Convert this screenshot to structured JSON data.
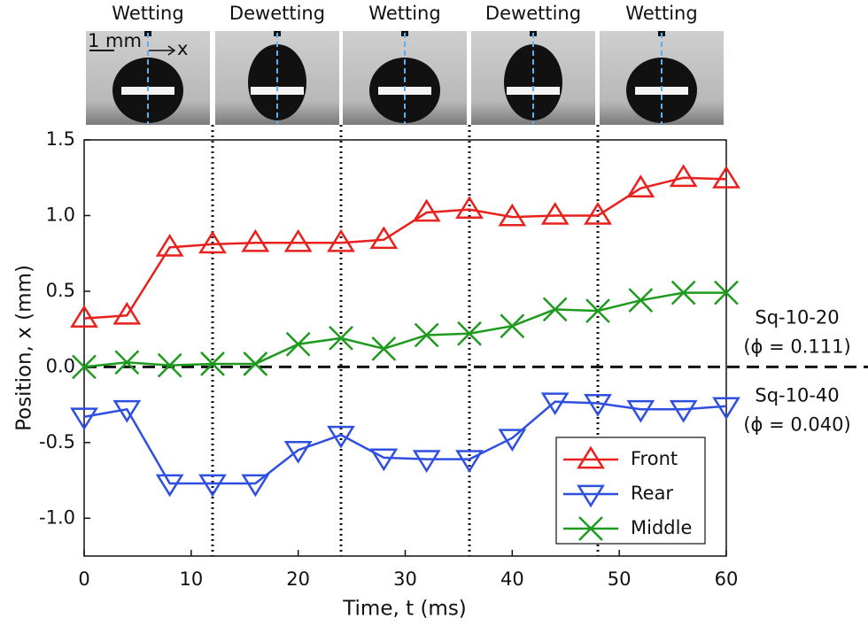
{
  "chart_data": {
    "type": "line",
    "panel_labels": [
      "Wetting",
      "Dewetting",
      "Wetting",
      "Dewetting",
      "Wetting"
    ],
    "scale_label": "1 mm",
    "photo_axis_label": "x",
    "x_label": "Time, t (ms)",
    "y_label": "Position, x (mm)",
    "x": [
      0,
      4,
      8,
      12,
      16,
      20,
      24,
      28,
      32,
      36,
      40,
      44,
      48,
      52,
      56,
      60
    ],
    "series": [
      {
        "name": "Front",
        "color": "#e8201e",
        "marker": "triangle-up",
        "values": [
          0.32,
          0.34,
          0.79,
          0.81,
          0.82,
          0.82,
          0.82,
          0.84,
          1.02,
          1.04,
          0.99,
          1.0,
          1.0,
          1.18,
          1.25,
          1.24
        ]
      },
      {
        "name": "Rear",
        "color": "#2f4fe0",
        "marker": "triangle-down",
        "values": [
          -0.33,
          -0.28,
          -0.77,
          -0.77,
          -0.77,
          -0.55,
          -0.45,
          -0.6,
          -0.61,
          -0.61,
          -0.47,
          -0.23,
          -0.24,
          -0.28,
          -0.28,
          -0.26
        ]
      },
      {
        "name": "Middle",
        "color": "#1e9a1e",
        "marker": "x",
        "values": [
          0.0,
          0.03,
          0.01,
          0.02,
          0.02,
          0.15,
          0.19,
          0.12,
          0.21,
          0.22,
          0.27,
          0.38,
          0.37,
          0.44,
          0.49,
          0.49
        ]
      }
    ],
    "xlim": [
      0,
      60
    ],
    "ylim": [
      -1.25,
      1.5
    ],
    "xticks": [
      0,
      10,
      20,
      30,
      40,
      50,
      60
    ],
    "yticks": [
      {
        "value": -1.0,
        "label": "-1.0"
      },
      -0.5,
      {
        "value": 0.0,
        "label": "0.0"
      },
      0.5,
      {
        "value": 1.0,
        "label": "1.0"
      },
      1.5
    ],
    "vlines": [
      12,
      24,
      36,
      48
    ],
    "hline": 0,
    "annotations": [
      "Sq-10-20",
      "(ϕ = 0.111)",
      "Sq-10-40",
      "(ϕ = 0.040)"
    ],
    "legend": "lower-right"
  }
}
